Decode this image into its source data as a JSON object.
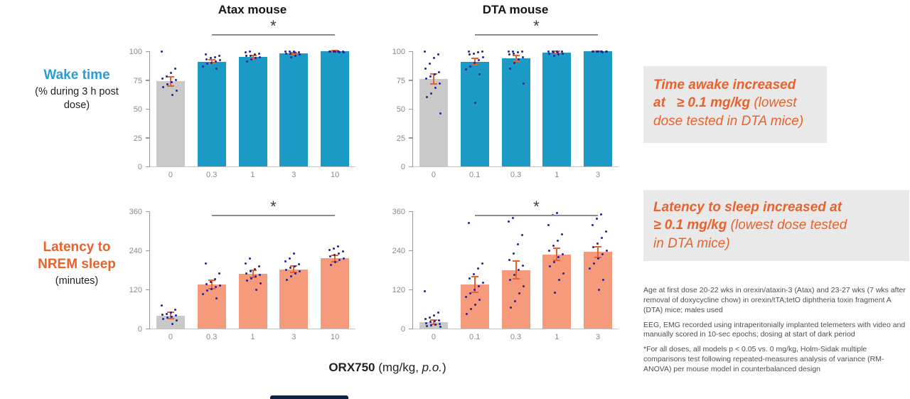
{
  "page": {
    "titles": {
      "atax": "Atax mouse",
      "dta": "DTA mouse"
    },
    "row_labels": {
      "wake": {
        "title": "Wake time",
        "sub": "(% during 3 h post dose)"
      },
      "latency": {
        "title": "Latency to NREM sleep",
        "sub": "(minutes)"
      }
    },
    "xaxis_label": {
      "drug": "ORX750",
      "mid": " (mg/kg, ",
      "italic": "p.o.",
      "close": ")"
    },
    "annotations": [
      {
        "bold": "Time awake increased at   ≥ 0.1 mg/kg ",
        "regular": "(lowest dose tested in DTA mice)"
      },
      {
        "bold": "Latency to sleep increased at ≥ 0.1 mg/kg ",
        "regular": "(lowest dose tested in DTA mice)"
      }
    ],
    "footnotes": [
      "Age at first dose 20-22 wks in orexin/ataxin-3 (Atax) and 23-27 wks (7 wks after removal of doxycycline chow) in orexin/tTA;tetO diphtheria toxin fragment A (DTA) mice; males used",
      "EEG, EMG recorded using intraperitonially implanted telemeters with video and manually scored in 10-sec epochs; dosing at start of dark period",
      "*For all doses, all models  p < 0.05 vs. 0 mg/kg, Holm-Sidak multiple comparisons test following repeated-measures analysis of variance (RM-ANOVA) per mouse model in counterbalanced design"
    ],
    "colors": {
      "wake_bar_teal": "#1C9AC6",
      "latency_bar_salmon": "#F59B7C",
      "control_bar_gray": "#C9C9C9",
      "error_bar_orange": "#E8622D",
      "data_point_navy": "#23239B",
      "wake_label_blue": "#2B9CD4",
      "latency_label_orange": "#E8622D",
      "callout_bg_gray": "#E9E9E9"
    }
  },
  "chart_data": [
    {
      "id": "wake-atax",
      "type": "bar",
      "title": "Atax mouse",
      "ylabel": "Wake time (% during 3 h post dose)",
      "xlabel": "ORX750 (mg/kg, p.o.)",
      "categories": [
        "0",
        "0.3",
        "1",
        "3",
        "10"
      ],
      "values": [
        74,
        91,
        95,
        98,
        100
      ],
      "sem": [
        4,
        1.5,
        1.2,
        0.8,
        0.4
      ],
      "scatter": [
        [
          100,
          85,
          81,
          78,
          76,
          75,
          73,
          71,
          69,
          66,
          62
        ],
        [
          97,
          96,
          95,
          94,
          93,
          92,
          91,
          90,
          89,
          87,
          85
        ],
        [
          100,
          99,
          98,
          97,
          96,
          96,
          95,
          94,
          93,
          91
        ],
        [
          100,
          100,
          100,
          99,
          99,
          98,
          98,
          97,
          96,
          95
        ],
        [
          100,
          100,
          100,
          100,
          100,
          100,
          100,
          99,
          99,
          100
        ]
      ],
      "ylim": [
        0,
        100
      ],
      "yticks": [
        0,
        25,
        50,
        75,
        100
      ],
      "grid": false,
      "bar_color": "#1C9AC6",
      "control_bar_color": "#C9C9C9",
      "significance": {
        "label": "*",
        "from_index": 1,
        "to_index": 4,
        "placement": "above"
      }
    },
    {
      "id": "wake-dta",
      "type": "bar",
      "title": "DTA mouse",
      "ylabel": "Wake time (% during 3 h post dose)",
      "xlabel": "ORX750 (mg/kg, p.o.)",
      "categories": [
        "0",
        "0.1",
        "0.3",
        "1",
        "3"
      ],
      "values": [
        76,
        91,
        94,
        99,
        100
      ],
      "sem": [
        4.5,
        3,
        2.5,
        0.8,
        0.3
      ],
      "scatter": [
        [
          100,
          97,
          94,
          89,
          85,
          82,
          80,
          78,
          76,
          72,
          68,
          63,
          60,
          46
        ],
        [
          100,
          100,
          99,
          98,
          97,
          95,
          92,
          90,
          87,
          84,
          80,
          55
        ],
        [
          100,
          100,
          100,
          99,
          98,
          97,
          95,
          93,
          90,
          85,
          72
        ],
        [
          100,
          100,
          100,
          100,
          99,
          99,
          98,
          98,
          97,
          96
        ],
        [
          100,
          100,
          100,
          100,
          100,
          100,
          100,
          100,
          99,
          100
        ]
      ],
      "ylim": [
        0,
        100
      ],
      "yticks": [
        0,
        25,
        50,
        75,
        100
      ],
      "grid": false,
      "bar_color": "#1C9AC6",
      "control_bar_color": "#C9C9C9",
      "significance": {
        "label": "*",
        "from_index": 1,
        "to_index": 4,
        "placement": "above"
      }
    },
    {
      "id": "latency-atax",
      "type": "bar",
      "title": "Atax mouse",
      "ylabel": "Latency to NREM sleep (minutes)",
      "xlabel": "ORX750 (mg/kg, p.o.)",
      "categories": [
        "0",
        "0.3",
        "1",
        "3",
        "10"
      ],
      "values": [
        40,
        135,
        168,
        182,
        215
      ],
      "sem": [
        10,
        13,
        10,
        10,
        9
      ],
      "scatter": [
        [
          70,
          58,
          50,
          45,
          42,
          40,
          37,
          34,
          30,
          25,
          15
        ],
        [
          200,
          170,
          152,
          143,
          137,
          132,
          127,
          122,
          117,
          106,
          92
        ],
        [
          215,
          200,
          190,
          182,
          176,
          170,
          165,
          160,
          154,
          148,
          138,
          120
        ],
        [
          230,
          216,
          206,
          197,
          191,
          186,
          180,
          175,
          169,
          160,
          150
        ],
        [
          252,
          246,
          241,
          236,
          231,
          226,
          221,
          216,
          210,
          205,
          196
        ]
      ],
      "ylim": [
        0,
        360
      ],
      "yticks": [
        0,
        120,
        240,
        360
      ],
      "grid": false,
      "bar_color": "#F59B7C",
      "control_bar_color": "#C9C9C9",
      "significance": {
        "label": "*",
        "from_index": 1,
        "to_index": 4,
        "placement": "inside"
      }
    },
    {
      "id": "latency-dta",
      "type": "bar",
      "title": "DTA mouse",
      "ylabel": "Latency to NREM sleep (minutes)",
      "xlabel": "ORX750 (mg/kg, p.o.)",
      "categories": [
        "0",
        "0.1",
        "0.3",
        "1",
        "3"
      ],
      "values": [
        20,
        135,
        180,
        228,
        235
      ],
      "sem": [
        6,
        24,
        28,
        18,
        16
      ],
      "scatter": [
        [
          115,
          50,
          40,
          34,
          30,
          26,
          22,
          20,
          17,
          14,
          12,
          9,
          7,
          5
        ],
        [
          325,
          200,
          184,
          168,
          153,
          140,
          129,
          119,
          108,
          98,
          88,
          74,
          60,
          45
        ],
        [
          340,
          328,
          288,
          258,
          230,
          210,
          194,
          179,
          164,
          149,
          130,
          108,
          85,
          65
        ],
        [
          355,
          348,
          318,
          290,
          270,
          254,
          240,
          229,
          219,
          205,
          190,
          170,
          150,
          110
        ],
        [
          350,
          338,
          318,
          298,
          278,
          260,
          249,
          238,
          228,
          214,
          199,
          184,
          150,
          120
        ]
      ],
      "ylim": [
        0,
        360
      ],
      "yticks": [
        0,
        120,
        240,
        360
      ],
      "grid": false,
      "bar_color": "#F59B7C",
      "control_bar_color": "#C9C9C9",
      "significance": {
        "label": "*",
        "from_index": 1,
        "to_index": 4,
        "placement": "inside"
      }
    }
  ]
}
